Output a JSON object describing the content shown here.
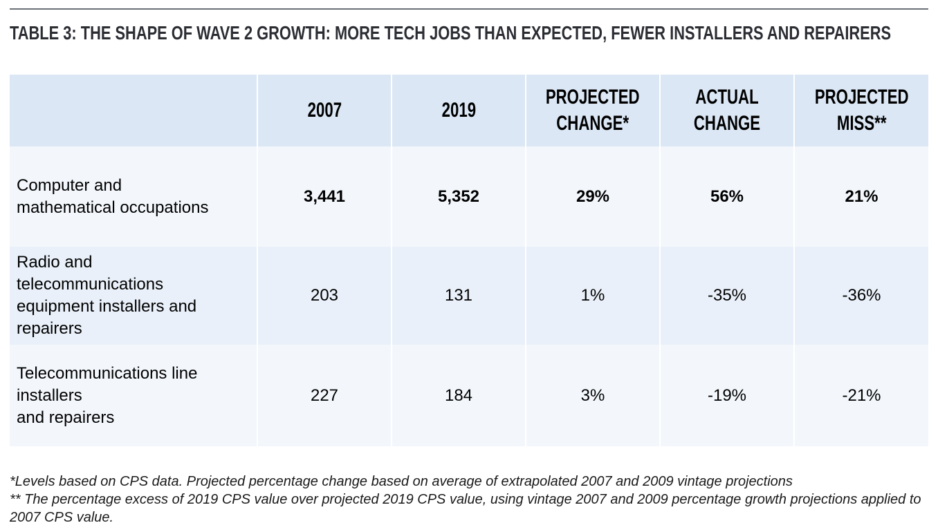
{
  "title": "TABLE 3: THE SHAPE OF WAVE 2 GROWTH: MORE TECH JOBS THAN EXPECTED, FEWER INSTALLERS AND REPAIRERS",
  "table": {
    "headers": [
      "",
      "2007",
      "2019",
      "PROJECTED CHANGE*",
      "ACTUAL CHANGE",
      "PROJECTED MISS**"
    ],
    "header_lines": [
      [
        ""
      ],
      [
        "2007"
      ],
      [
        "2019"
      ],
      [
        "PROJECTED",
        "CHANGE*"
      ],
      [
        "ACTUAL",
        "CHANGE"
      ],
      [
        "PROJECTED",
        "MISS**"
      ]
    ],
    "rows": [
      {
        "label_lines": [
          "Computer and",
          "mathematical occupations"
        ],
        "v2007": "3,441",
        "v2019": "5,352",
        "projected_change": "29%",
        "actual_change": "56%",
        "projected_miss": "21%"
      },
      {
        "label_lines": [
          "Radio and",
          "telecommunications",
          "equipment installers and",
          "repairers"
        ],
        "v2007": "203",
        "v2019": "131",
        "projected_change": "1%",
        "actual_change": "-35%",
        "projected_miss": "-36%"
      },
      {
        "label_lines": [
          "Telecommunications line",
          "installers",
          "and repairers"
        ],
        "v2007": "227",
        "v2019": "184",
        "projected_change": "3%",
        "actual_change": "-19%",
        "projected_miss": "-21%"
      }
    ]
  },
  "footnotes": [
    "*Levels based on CPS data. Projected percentage change based on average of extrapolated 2007 and 2009 vintage projections",
    "** The percentage excess of 2019 CPS value over  projected 2019 CPS value, using vintage 2007 and 2009 percentage growth projections applied to 2007 CPS value."
  ],
  "colors": {
    "header_bg": "#dbe7f5",
    "row_light": "#f3f7fc",
    "row_mid": "#e9f0f9",
    "title_text": "#2b2d33",
    "rule": "#6b6f75"
  }
}
